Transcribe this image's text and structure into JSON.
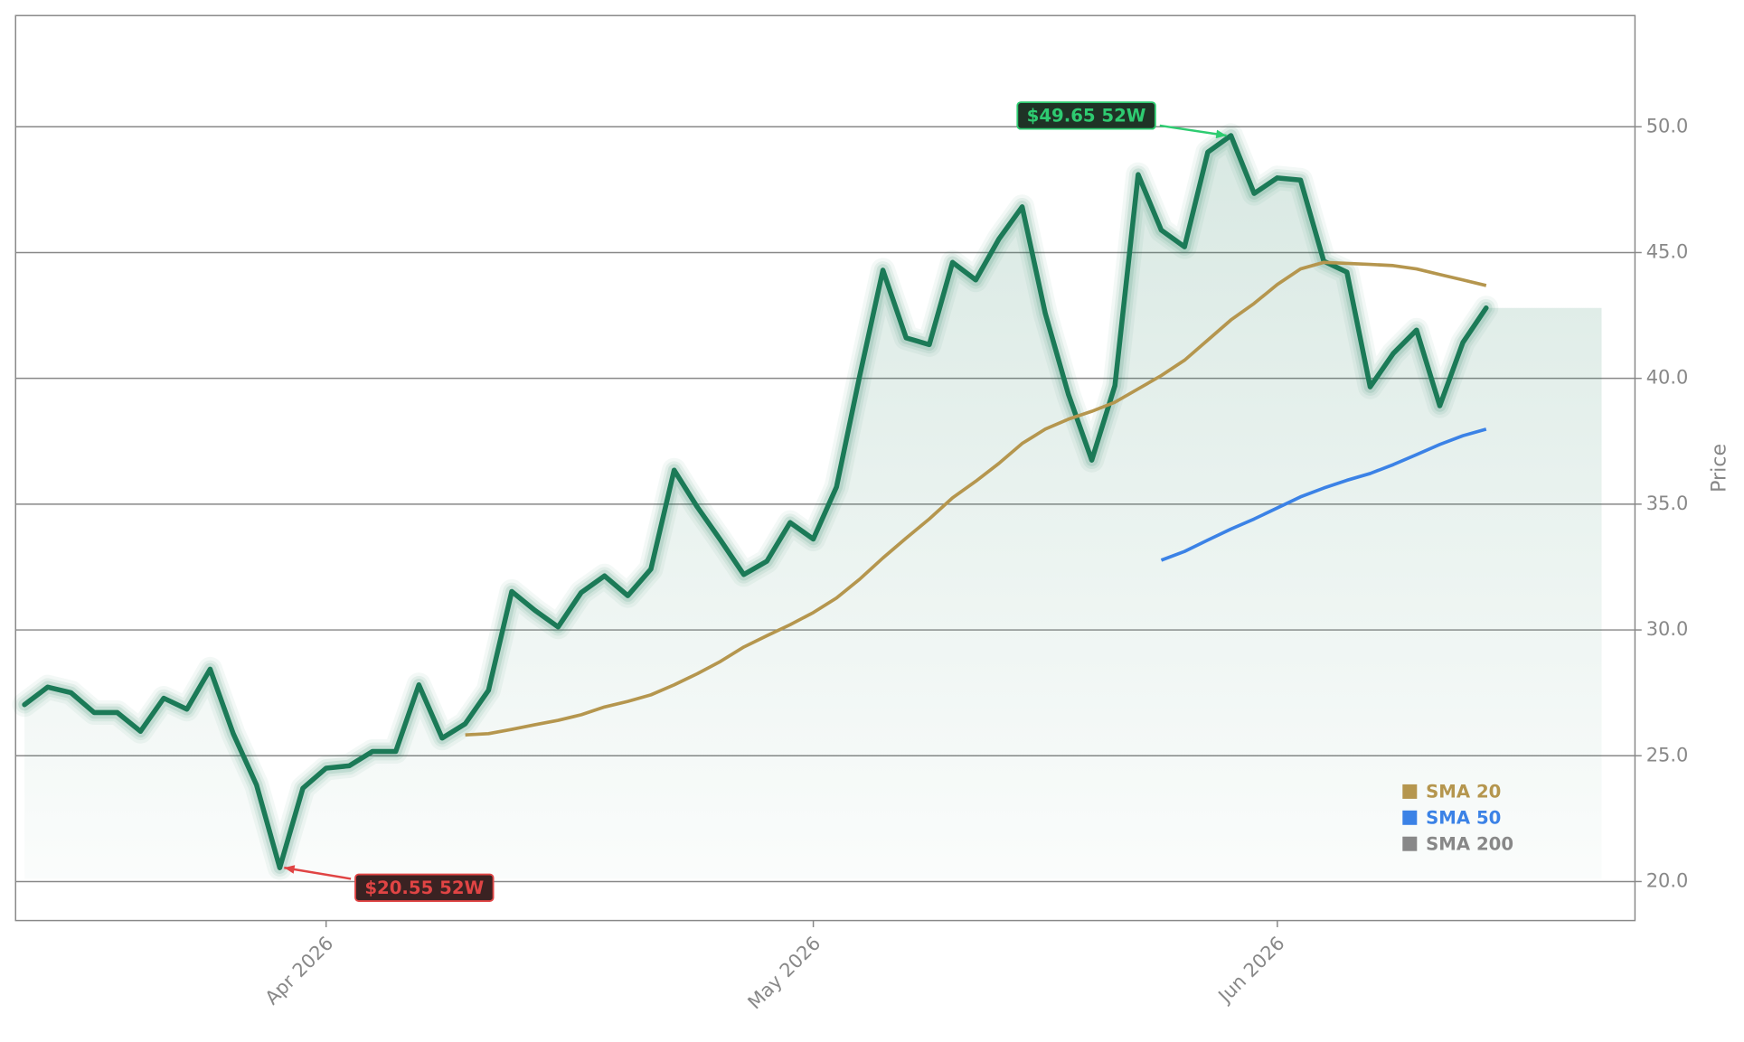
{
  "chart_data": {
    "type": "line",
    "y_axis_label": "Price",
    "categories": [
      null,
      null,
      null,
      null,
      null,
      null,
      null,
      null,
      null,
      null,
      null,
      null,
      null,
      "Apr 2026",
      null,
      null,
      null,
      null,
      null,
      null,
      null,
      null,
      null,
      null,
      null,
      null,
      null,
      null,
      null,
      null,
      null,
      null,
      null,
      null,
      "May 2026",
      null,
      null,
      null,
      null,
      null,
      null,
      null,
      null,
      null,
      null,
      null,
      null,
      null,
      null,
      null,
      null,
      null,
      null,
      null,
      "Jun 2026",
      null,
      null,
      null,
      null,
      null,
      null,
      null,
      null,
      null
    ],
    "series": [
      {
        "name": "Price",
        "color": "#1b7a57",
        "values": [
          27.03,
          27.73,
          27.51,
          26.72,
          26.72,
          25.97,
          27.29,
          26.85,
          28.44,
          25.88,
          23.84,
          20.55,
          23.71,
          24.51,
          24.6,
          25.17,
          25.17,
          27.82,
          25.7,
          26.27,
          27.6,
          31.53,
          30.78,
          30.12,
          31.49,
          32.15,
          31.36,
          32.42,
          36.35,
          34.89,
          33.57,
          32.2,
          32.73,
          34.27,
          33.61,
          35.69,
          40.11,
          44.3,
          41.61,
          41.34,
          44.61,
          43.91,
          45.54,
          46.82,
          42.58,
          39.35,
          36.75,
          39.71,
          48.1,
          45.89,
          45.23,
          48.99,
          49.65,
          47.35,
          47.97,
          47.88,
          44.66,
          44.22,
          39.66,
          40.99,
          41.92,
          38.91,
          41.43,
          42.8
        ]
      },
      {
        "name": "SMA 20",
        "color": "#b5964e",
        "values": [
          null,
          null,
          null,
          null,
          null,
          null,
          null,
          null,
          null,
          null,
          null,
          null,
          null,
          null,
          null,
          null,
          null,
          null,
          null,
          25.83,
          25.88,
          26.05,
          26.23,
          26.41,
          26.63,
          26.94,
          27.16,
          27.42,
          27.82,
          28.26,
          28.75,
          29.32,
          29.77,
          30.21,
          30.69,
          31.27,
          32.02,
          32.86,
          33.65,
          34.41,
          35.25,
          35.91,
          36.62,
          37.41,
          37.98,
          38.38,
          38.69,
          39.05,
          39.58,
          40.11,
          40.72,
          41.52,
          42.32,
          42.98,
          43.73,
          44.35,
          44.61,
          44.57,
          44.53,
          44.48,
          44.35,
          44.13,
          43.91,
          43.69
        ]
      },
      {
        "name": "SMA 50",
        "color": "#3b82e6",
        "values": [
          null,
          null,
          null,
          null,
          null,
          null,
          null,
          null,
          null,
          null,
          null,
          null,
          null,
          null,
          null,
          null,
          null,
          null,
          null,
          null,
          null,
          null,
          null,
          null,
          null,
          null,
          null,
          null,
          null,
          null,
          null,
          null,
          null,
          null,
          null,
          null,
          null,
          null,
          null,
          null,
          null,
          null,
          null,
          null,
          null,
          null,
          null,
          null,
          null,
          32.77,
          33.12,
          33.57,
          34.01,
          34.41,
          34.85,
          35.29,
          35.64,
          35.95,
          36.22,
          36.57,
          36.97,
          37.37,
          37.72,
          37.98
        ]
      },
      {
        "name": "SMA 200",
        "color": "#888888",
        "values": [
          null,
          null,
          null,
          null,
          null,
          null,
          null,
          null,
          null,
          null,
          null,
          null,
          null,
          null,
          null,
          null,
          null,
          null,
          null,
          null,
          null,
          null,
          null,
          null,
          null,
          null,
          null,
          null,
          null,
          null,
          null,
          null,
          null,
          null,
          null,
          null,
          null,
          null,
          null,
          null,
          null,
          null,
          null,
          null,
          null,
          null,
          null,
          null,
          null,
          null,
          null,
          null,
          null,
          null,
          null,
          null,
          null,
          null,
          null,
          null,
          null,
          null,
          null,
          null
        ]
      }
    ],
    "ylim": [
      18.45,
      54.42
    ],
    "yticks": [
      {
        "value": 20,
        "label": "20.0"
      },
      {
        "value": 25,
        "label": "25.0"
      },
      {
        "value": 30,
        "label": "30.0"
      },
      {
        "value": 35,
        "label": "35.0"
      },
      {
        "value": 40,
        "label": "40.0"
      },
      {
        "value": 45,
        "label": "45.0"
      },
      {
        "value": 50,
        "label": "50.0"
      }
    ],
    "grid": true,
    "legend": "lower right",
    "annotations": [
      {
        "value": 49.65,
        "label": "$49.65 52W",
        "color": "#2ecc71",
        "box_color": "#1f3326"
      },
      {
        "value": 20.55,
        "label": "$20.55 52W",
        "color": "#e04444",
        "box_color": "#3a2222"
      }
    ]
  }
}
